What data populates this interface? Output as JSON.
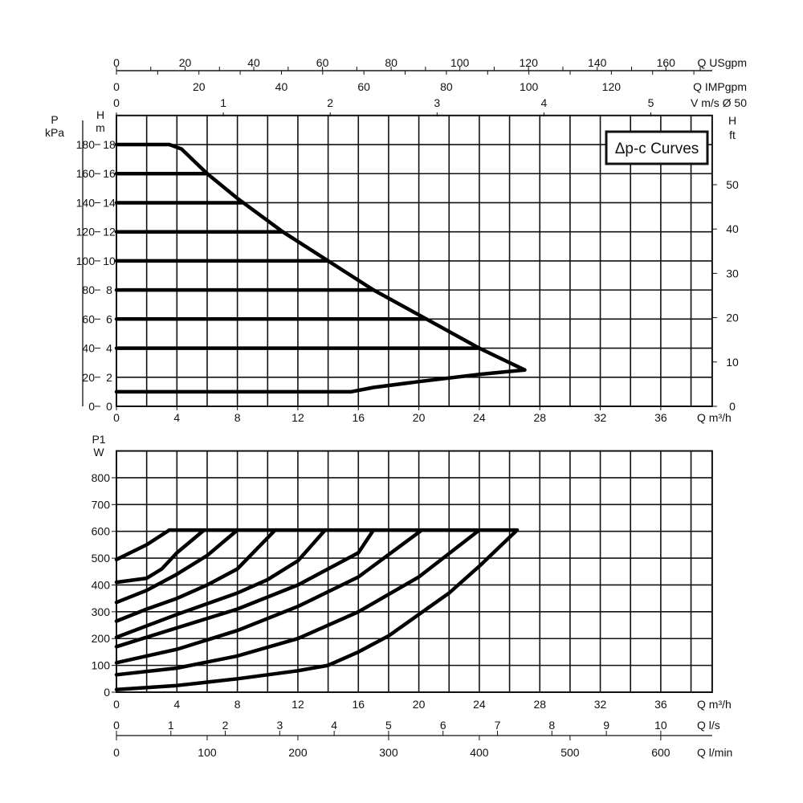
{
  "chart_data": [
    {
      "type": "line",
      "title": "",
      "legend_label": "Δp-c Curves",
      "legend_placement": "top-right",
      "grid": true,
      "xlabel": "Q m³/h",
      "xlim": [
        0,
        39.4
      ],
      "xticks": [
        0,
        4,
        8,
        12,
        16,
        20,
        24,
        28,
        32,
        36
      ],
      "ylabel_left_outer": [
        "P",
        "kPa"
      ],
      "ylabel_left_inner": [
        "H",
        "m"
      ],
      "ylabel_right": [
        "H",
        "ft"
      ],
      "ylim": [
        0,
        20
      ],
      "yticks_m": [
        0,
        2,
        4,
        6,
        8,
        10,
        12,
        14,
        16,
        18
      ],
      "yticks_kPa": [
        0,
        20,
        40,
        60,
        80,
        100,
        120,
        140,
        160,
        180
      ],
      "yticks_ft": [
        0,
        10,
        20,
        30,
        40,
        50
      ],
      "top_axes": [
        {
          "label": "Q USgpm",
          "ticks": [
            0,
            20,
            40,
            60,
            80,
            100,
            120,
            140,
            160
          ]
        },
        {
          "label": "Q IMPgpm",
          "ticks": [
            0,
            20,
            40,
            60,
            80,
            100,
            120
          ]
        },
        {
          "label": "V m/s Ø 50",
          "ticks": [
            0,
            1,
            2,
            3,
            4,
            5
          ]
        }
      ],
      "series": [
        {
          "id": "max",
          "points": [
            [
              0,
              18
            ],
            [
              3.5,
              18
            ],
            [
              4.3,
              17.7
            ],
            [
              6,
              16
            ],
            [
              8,
              14.3
            ],
            [
              11,
              12
            ],
            [
              14,
              10
            ],
            [
              17,
              8
            ],
            [
              20.5,
              6
            ],
            [
              24,
              4
            ],
            [
              27,
              2.5
            ]
          ]
        },
        {
          "id": "min",
          "points": [
            [
              27,
              2.5
            ],
            [
              24,
              2.2
            ],
            [
              20,
              1.7
            ],
            [
              17,
              1.3
            ],
            [
              15.5,
              1
            ],
            [
              0,
              1
            ]
          ]
        },
        {
          "id": "16m",
          "points": [
            [
              0,
              16
            ],
            [
              6,
              16
            ]
          ]
        },
        {
          "id": "14m",
          "points": [
            [
              0,
              14
            ],
            [
              8.3,
              14
            ]
          ]
        },
        {
          "id": "12m",
          "points": [
            [
              0,
              12
            ],
            [
              11,
              12
            ]
          ]
        },
        {
          "id": "10m",
          "points": [
            [
              0,
              10
            ],
            [
              14,
              10
            ]
          ]
        },
        {
          "id": "8m",
          "points": [
            [
              0,
              8
            ],
            [
              17,
              8
            ]
          ]
        },
        {
          "id": "6m",
          "points": [
            [
              0,
              6
            ],
            [
              20.5,
              6
            ]
          ]
        },
        {
          "id": "4m",
          "points": [
            [
              0,
              4
            ],
            [
              24,
              4
            ]
          ]
        }
      ]
    },
    {
      "type": "line",
      "title": "",
      "grid": true,
      "xlabel": "Q m³/h",
      "xlim": [
        0,
        39.4
      ],
      "xticks": [
        0,
        4,
        8,
        12,
        16,
        20,
        24,
        28,
        32,
        36
      ],
      "ylabel": [
        "P1",
        "W"
      ],
      "ylim": [
        0,
        900
      ],
      "yticks": [
        0,
        100,
        200,
        300,
        400,
        500,
        600,
        700,
        800
      ],
      "bottom_axes": [
        {
          "label": "Q l/s",
          "ticks": [
            0,
            1,
            2,
            3,
            4,
            5,
            6,
            7,
            8,
            9,
            10
          ]
        },
        {
          "label": "Q l/min",
          "ticks": [
            0,
            100,
            200,
            300,
            400,
            500,
            600
          ]
        }
      ],
      "series": [
        {
          "id": "limit",
          "points": [
            [
              3.5,
              605
            ],
            [
              26.5,
              605
            ]
          ]
        },
        {
          "id": "max",
          "points": [
            [
              0,
              495
            ],
            [
              2,
              550
            ],
            [
              3.5,
              605
            ]
          ]
        },
        {
          "id": "16m",
          "points": [
            [
              0,
              410
            ],
            [
              2,
              425
            ],
            [
              3,
              460
            ],
            [
              4,
              520
            ],
            [
              5.8,
              605
            ]
          ]
        },
        {
          "id": "14m",
          "points": [
            [
              0,
              335
            ],
            [
              2,
              380
            ],
            [
              4,
              440
            ],
            [
              6,
              510
            ],
            [
              8,
              605
            ]
          ]
        },
        {
          "id": "12m",
          "points": [
            [
              0,
              265
            ],
            [
              2,
              310
            ],
            [
              4,
              350
            ],
            [
              6,
              400
            ],
            [
              8,
              460
            ],
            [
              10.5,
              605
            ]
          ]
        },
        {
          "id": "10m",
          "points": [
            [
              0,
              205
            ],
            [
              4,
              290
            ],
            [
              8,
              370
            ],
            [
              10,
              420
            ],
            [
              12,
              490
            ],
            [
              13.8,
              605
            ]
          ]
        },
        {
          "id": "8m",
          "points": [
            [
              0,
              170
            ],
            [
              4,
              240
            ],
            [
              8,
              310
            ],
            [
              12,
              400
            ],
            [
              16,
              520
            ],
            [
              17,
              605
            ]
          ]
        },
        {
          "id": "6m",
          "points": [
            [
              0,
              110
            ],
            [
              4,
              160
            ],
            [
              8,
              230
            ],
            [
              12,
              320
            ],
            [
              16,
              430
            ],
            [
              20.2,
              605
            ]
          ]
        },
        {
          "id": "4m",
          "points": [
            [
              0,
              65
            ],
            [
              4,
              90
            ],
            [
              8,
              135
            ],
            [
              12,
              200
            ],
            [
              16,
              300
            ],
            [
              20,
              430
            ],
            [
              24,
              605
            ]
          ]
        },
        {
          "id": "min",
          "points": [
            [
              0,
              10
            ],
            [
              4,
              25
            ],
            [
              8,
              50
            ],
            [
              12,
              80
            ],
            [
              14,
              100
            ],
            [
              16,
              150
            ],
            [
              18,
              210
            ],
            [
              20,
              290
            ],
            [
              22,
              370
            ],
            [
              24,
              470
            ],
            [
              26.5,
              605
            ]
          ]
        }
      ]
    }
  ]
}
